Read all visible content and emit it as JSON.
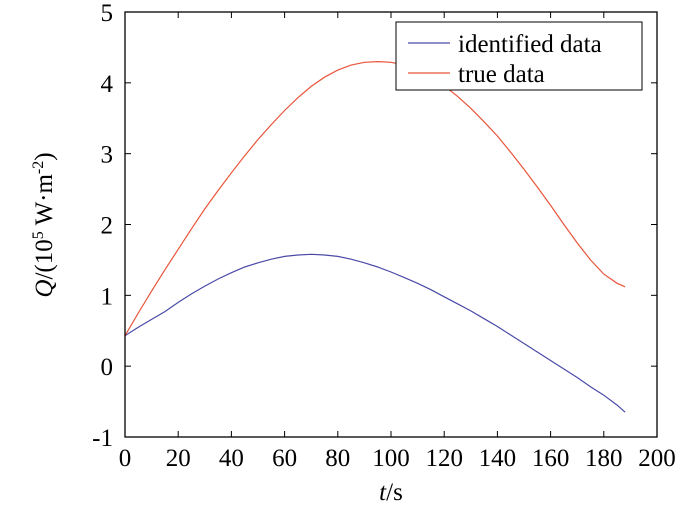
{
  "chart_data": {
    "type": "line",
    "title": "",
    "xlabel": {
      "italic": "t",
      "rest": "/s"
    },
    "ylabel": {
      "italic": "Q",
      "prefix": "/(10",
      "sup1": "5",
      "mid": " W·m",
      "sup2": "-2",
      "suffix": ")"
    },
    "xlim": [
      0,
      200
    ],
    "ylim": [
      -1,
      5
    ],
    "xticks": [
      0,
      20,
      40,
      60,
      80,
      100,
      120,
      140,
      160,
      180,
      200
    ],
    "yticks": [
      -1,
      0,
      1,
      2,
      3,
      4,
      5
    ],
    "grid": false,
    "legend_position": "top-right",
    "series": [
      {
        "name": "identified data",
        "color": "#4a4aa8",
        "x": [
          0,
          5,
          10,
          15,
          20,
          25,
          30,
          35,
          40,
          45,
          50,
          55,
          60,
          65,
          70,
          75,
          80,
          85,
          90,
          95,
          100,
          105,
          110,
          115,
          120,
          125,
          130,
          135,
          140,
          145,
          150,
          155,
          160,
          165,
          170,
          175,
          180,
          185,
          188
        ],
        "y": [
          0.43,
          0.55,
          0.66,
          0.77,
          0.9,
          1.02,
          1.13,
          1.23,
          1.32,
          1.4,
          1.46,
          1.51,
          1.55,
          1.57,
          1.58,
          1.57,
          1.55,
          1.51,
          1.46,
          1.4,
          1.33,
          1.25,
          1.17,
          1.08,
          0.98,
          0.88,
          0.78,
          0.67,
          0.56,
          0.44,
          0.32,
          0.2,
          0.08,
          -0.04,
          -0.16,
          -0.29,
          -0.41,
          -0.55,
          -0.65
        ]
      },
      {
        "name": "true data",
        "color": "#e8553a",
        "x": [
          0,
          5,
          10,
          15,
          20,
          25,
          30,
          35,
          40,
          45,
          50,
          55,
          60,
          65,
          70,
          75,
          80,
          85,
          90,
          95,
          100,
          105,
          110,
          115,
          120,
          125,
          130,
          135,
          140,
          145,
          150,
          155,
          160,
          165,
          170,
          175,
          180,
          185,
          188
        ],
        "y": [
          0.43,
          0.75,
          1.06,
          1.36,
          1.65,
          1.94,
          2.22,
          2.48,
          2.73,
          2.97,
          3.2,
          3.41,
          3.61,
          3.79,
          3.95,
          4.08,
          4.18,
          4.25,
          4.29,
          4.3,
          4.29,
          4.25,
          4.18,
          4.08,
          3.96,
          3.81,
          3.64,
          3.45,
          3.25,
          3.02,
          2.78,
          2.53,
          2.27,
          2.0,
          1.74,
          1.5,
          1.3,
          1.17,
          1.12
        ]
      }
    ]
  }
}
